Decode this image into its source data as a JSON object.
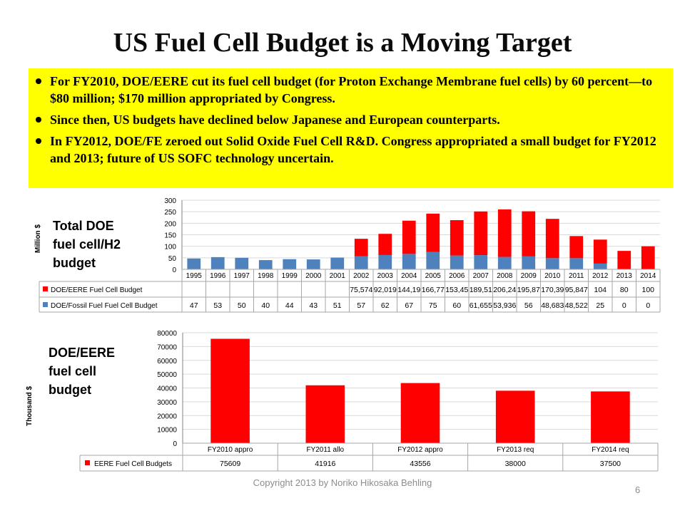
{
  "slide": {
    "title": "US Fuel Cell Budget is a Moving Target",
    "bullets": [
      "For FY2010,  DOE/EERE cut its fuel cell budget (for Proton Exchange Membrane fuel cells) by 60 percent—to $80 million; $170 million appropriated by Congress.",
      "Since then, US budgets have declined below Japanese and European counterparts.",
      "In FY2012, DOE/FE zeroed out Solid Oxide Fuel Cell R&D. Congress appropriated a small budget for FY2012 and 2013; future of US SOFC technology uncertain."
    ],
    "label1_lines": [
      "Total DOE",
      "fuel cell/H2",
      "budget"
    ],
    "label2_lines": [
      "DOE/EERE",
      "fuel cell",
      "budget"
    ],
    "footer": "Copyright 2013 by Noriko Hikosaka Behling",
    "page_number": "6"
  },
  "colors": {
    "eere": "#ff0000",
    "fossil": "#4f81bd",
    "grid": "#d9d9d9",
    "highlight": "#ffff00"
  },
  "chart_data": [
    {
      "type": "bar",
      "stacked": true,
      "ylabel": "Million $",
      "ylim": [
        0,
        300
      ],
      "yticks": [
        0,
        50,
        100,
        150,
        200,
        250,
        300
      ],
      "categories": [
        "1995",
        "1996",
        "1997",
        "1998",
        "1999",
        "2000",
        "2001",
        "2002",
        "2003",
        "2004",
        "2005",
        "2006",
        "2007",
        "2008",
        "2009",
        "2010",
        "2011",
        "2012",
        "2013",
        "2014"
      ],
      "series": [
        {
          "name": "DOE/Fossil Fuel Fuel Cell Budget",
          "values": [
            47,
            53,
            50,
            40,
            44,
            43,
            51,
            57,
            62,
            67,
            75,
            60,
            61.655,
            53.936,
            56,
            48.683,
            48.522,
            25,
            0,
            0
          ],
          "labels": [
            "47",
            "53",
            "50",
            "40",
            "44",
            "43",
            "51",
            "57",
            "62",
            "67",
            "75",
            "60",
            "61,655",
            "53,936",
            "56",
            "48,683",
            "48,522",
            "25",
            "0",
            "0"
          ]
        },
        {
          "name": "DOE/EERE Fuel Cell Budget",
          "values": [
            null,
            null,
            null,
            null,
            null,
            null,
            null,
            75.574,
            92.019,
            144.19,
            166.77,
            153.45,
            189.51,
            206.24,
            195.87,
            170.39,
            95.847,
            104,
            80,
            100
          ],
          "labels": [
            "",
            "",
            "",
            "",
            "",
            "",
            "",
            "75,574",
            "92,019",
            "144,19",
            "166,77",
            "153,45",
            "189,51",
            "206,24",
            "195,87",
            "170,39",
            "95,847",
            "104",
            "80",
            "100"
          ]
        }
      ]
    },
    {
      "type": "bar",
      "ylabel": "Thousand $",
      "ylim": [
        0,
        80000
      ],
      "yticks": [
        0,
        10000,
        20000,
        30000,
        40000,
        50000,
        60000,
        70000,
        80000
      ],
      "categories": [
        "FY2010 appro",
        "FY2011 allo",
        "FY2012 appro",
        "FY2013 req",
        "FY2014 req"
      ],
      "series": [
        {
          "name": "EERE Fuel Cell Budgets",
          "values": [
            75609,
            41916,
            43556,
            38000,
            37500
          ],
          "labels": [
            "75609",
            "41916",
            "43556",
            "38000",
            "37500"
          ]
        }
      ]
    }
  ]
}
